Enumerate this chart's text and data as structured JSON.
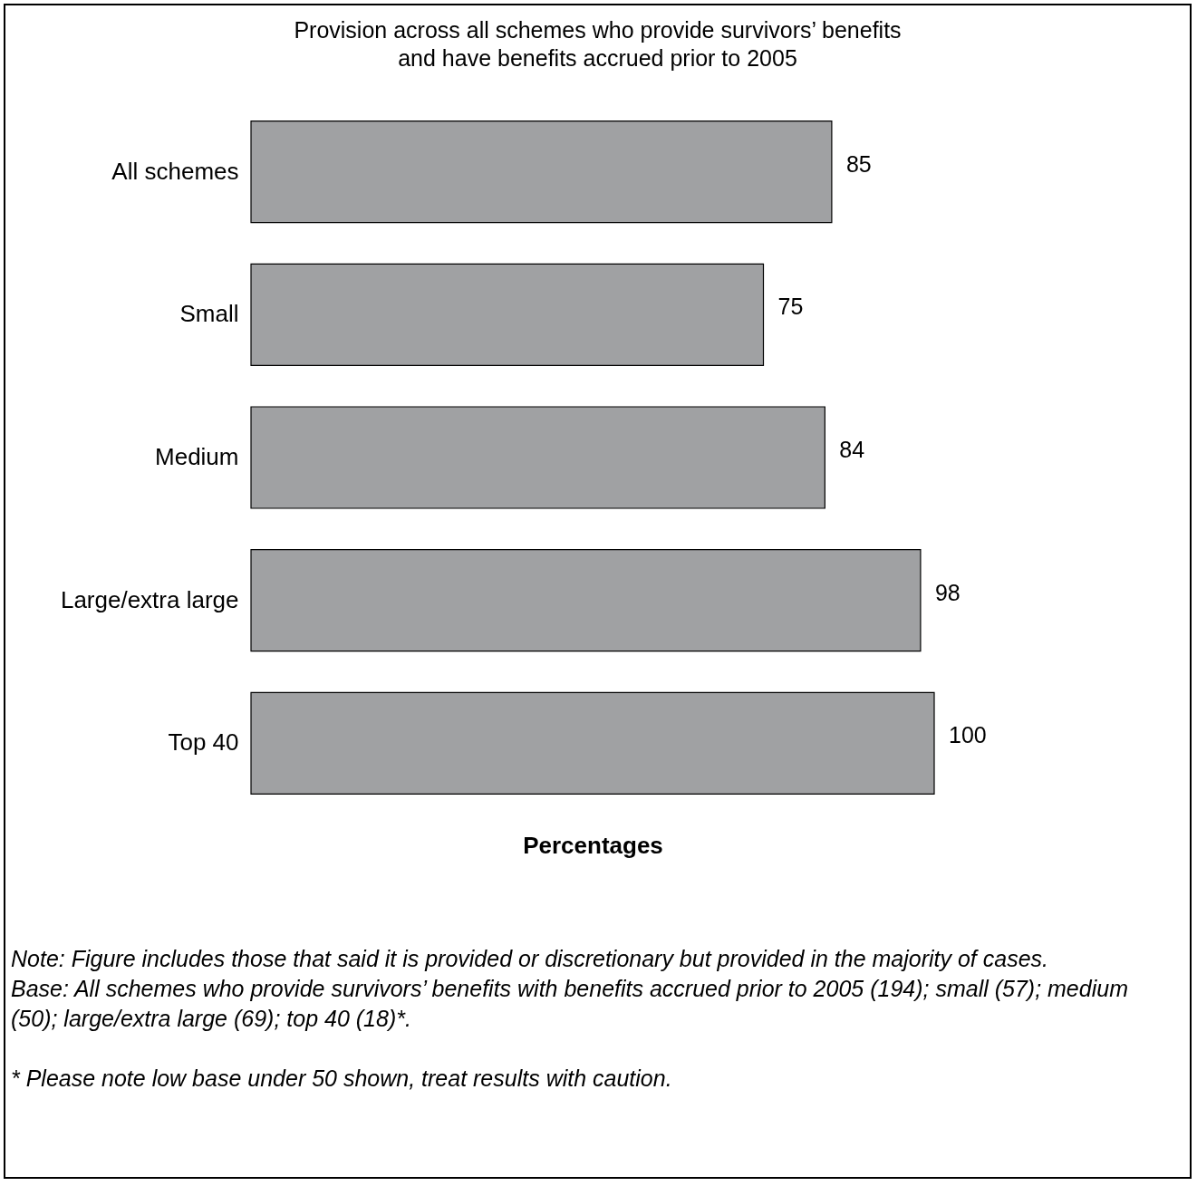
{
  "chart_data": {
    "type": "bar",
    "orientation": "horizontal",
    "title": "Provision across all schemes who provide survivors’ benefits\nand have benefits accrued prior to 2005",
    "xlabel": "Percentages",
    "categories": [
      "All schemes",
      "Small",
      "Medium",
      "Large/extra large",
      "Top 40"
    ],
    "values": [
      85,
      75,
      84,
      98,
      100
    ],
    "color": "#a0a1a3",
    "data_labels": true,
    "annotations": [
      "Note: Figure includes those that said it is provided or discretionary but provided in the majority of cases.",
      "Base: All schemes who provide survivors’ benefits with benefits accrued prior to 2005 (194); small (57); medium (50); large/extra large (69); top 40 (18)*.",
      "* Please note low base under 50 shown, treat results with caution."
    ]
  }
}
